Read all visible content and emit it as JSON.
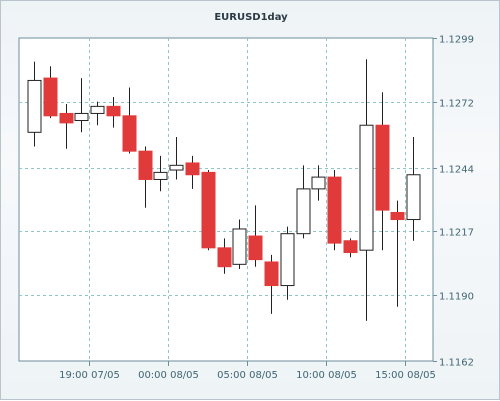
{
  "chart_data": {
    "type": "candlestick",
    "title": "EURUSD1day",
    "y_ticks": [
      1.1299,
      1.1272,
      1.1244,
      1.1217,
      1.119,
      1.1162
    ],
    "ylim": [
      1.1162,
      1.1299
    ],
    "x_tick_labels": [
      {
        "label": "19:00 07/05",
        "after_index": 3
      },
      {
        "label": "00:00 08/05",
        "after_index": 8
      },
      {
        "label": "05:00 08/05",
        "after_index": 13
      },
      {
        "label": "10:00 08/05",
        "after_index": 18
      },
      {
        "label": "15:00 08/05",
        "after_index": 23
      }
    ],
    "colors": {
      "up": "#ffffff",
      "down": "#e03a3a",
      "wick": "#222222",
      "grid": "#8fc7c7"
    },
    "candles": [
      {
        "o": 1.1259,
        "h": 1.1289,
        "l": 1.1253,
        "c": 1.1281
      },
      {
        "o": 1.1282,
        "h": 1.1287,
        "l": 1.1265,
        "c": 1.1266
      },
      {
        "o": 1.1267,
        "h": 1.1271,
        "l": 1.1252,
        "c": 1.1263
      },
      {
        "o": 1.1264,
        "h": 1.1282,
        "l": 1.1259,
        "c": 1.1267
      },
      {
        "o": 1.1267,
        "h": 1.1272,
        "l": 1.1262,
        "c": 1.127
      },
      {
        "o": 1.127,
        "h": 1.1274,
        "l": 1.1261,
        "c": 1.1266
      },
      {
        "o": 1.1266,
        "h": 1.1278,
        "l": 1.125,
        "c": 1.1251
      },
      {
        "o": 1.1251,
        "h": 1.1253,
        "l": 1.1227,
        "c": 1.1239
      },
      {
        "o": 1.1239,
        "h": 1.1249,
        "l": 1.1234,
        "c": 1.1242
      },
      {
        "o": 1.1243,
        "h": 1.1257,
        "l": 1.1239,
        "c": 1.1245
      },
      {
        "o": 1.1246,
        "h": 1.1249,
        "l": 1.1235,
        "c": 1.1241
      },
      {
        "o": 1.1242,
        "h": 1.1243,
        "l": 1.1209,
        "c": 1.121
      },
      {
        "o": 1.121,
        "h": 1.1214,
        "l": 1.1199,
        "c": 1.1202
      },
      {
        "o": 1.1203,
        "h": 1.1222,
        "l": 1.1201,
        "c": 1.1218
      },
      {
        "o": 1.1215,
        "h": 1.1228,
        "l": 1.1202,
        "c": 1.1205
      },
      {
        "o": 1.1204,
        "h": 1.1207,
        "l": 1.1182,
        "c": 1.1194
      },
      {
        "o": 1.1194,
        "h": 1.1219,
        "l": 1.1188,
        "c": 1.1216
      },
      {
        "o": 1.1216,
        "h": 1.1245,
        "l": 1.1214,
        "c": 1.1235
      },
      {
        "o": 1.1235,
        "h": 1.1245,
        "l": 1.123,
        "c": 1.124
      },
      {
        "o": 1.124,
        "h": 1.1243,
        "l": 1.1209,
        "c": 1.1212
      },
      {
        "o": 1.1213,
        "h": 1.1214,
        "l": 1.1206,
        "c": 1.1208
      },
      {
        "o": 1.1209,
        "h": 1.129,
        "l": 1.1179,
        "c": 1.1262
      },
      {
        "o": 1.1262,
        "h": 1.1276,
        "l": 1.1209,
        "c": 1.1226
      },
      {
        "o": 1.1225,
        "h": 1.123,
        "l": 1.1185,
        "c": 1.1222
      },
      {
        "o": 1.1222,
        "h": 1.1257,
        "l": 1.1213,
        "c": 1.1241
      }
    ]
  }
}
